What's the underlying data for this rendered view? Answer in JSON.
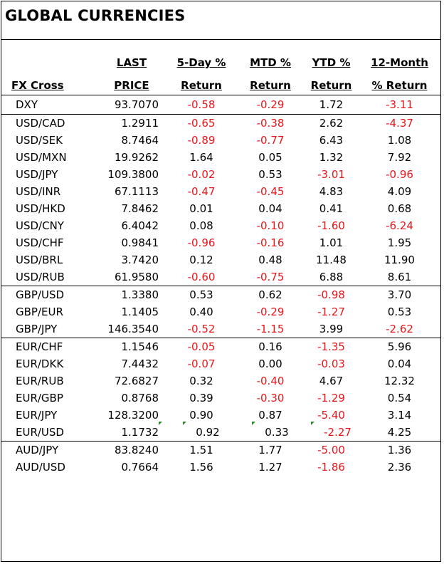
{
  "title": "GLOBAL CURRENCIES",
  "headers": {
    "fx_cross": "FX Cross",
    "last_line1": "LAST",
    "last_line2": "PRICE",
    "day5_line1": "5-Day %",
    "day5_line2": "Return",
    "mtd_line1": "MTD %",
    "mtd_line2": "Return",
    "ytd_line1": "YTD %",
    "ytd_line2": "Return",
    "m12_line1": "12-Month",
    "m12_line2": "% Return"
  },
  "colors": {
    "negative": "#e8151b",
    "positive": "#000000",
    "note_marker": "#2a8a2a"
  },
  "groups": [
    {
      "rows": [
        {
          "pair": "DXY",
          "last": "93.7070",
          "d5": "-0.58",
          "mtd": "-0.29",
          "ytd": "1.72",
          "m12": "-3.11"
        }
      ]
    },
    {
      "rows": [
        {
          "pair": "USD/CAD",
          "last": "1.2911",
          "d5": "-0.65",
          "mtd": "-0.38",
          "ytd": "2.62",
          "m12": "-4.37"
        },
        {
          "pair": "USD/SEK",
          "last": "8.7464",
          "d5": "-0.89",
          "mtd": "-0.77",
          "ytd": "6.43",
          "m12": "1.08"
        },
        {
          "pair": "USD/MXN",
          "last": "19.9262",
          "d5": "1.64",
          "mtd": "0.05",
          "ytd": "1.32",
          "m12": "7.92"
        },
        {
          "pair": "USD/JPY",
          "last": "109.3800",
          "d5": "-0.02",
          "mtd": "0.53",
          "ytd": "-3.01",
          "m12": "-0.96"
        },
        {
          "pair": "USD/INR",
          "last": "67.1113",
          "d5": "-0.47",
          "mtd": "-0.45",
          "ytd": "4.83",
          "m12": "4.09"
        },
        {
          "pair": "USD/HKD",
          "last": "7.8462",
          "d5": "0.01",
          "mtd": "0.04",
          "ytd": "0.41",
          "m12": "0.68"
        },
        {
          "pair": "USD/CNY",
          "last": "6.4042",
          "d5": "0.08",
          "mtd": "-0.10",
          "ytd": "-1.60",
          "m12": "-6.24"
        },
        {
          "pair": "USD/CHF",
          "last": "0.9841",
          "d5": "-0.96",
          "mtd": "-0.16",
          "ytd": "1.01",
          "m12": "1.95"
        },
        {
          "pair": "USD/BRL",
          "last": "3.7420",
          "d5": "0.12",
          "mtd": "0.48",
          "ytd": "11.48",
          "m12": "11.90"
        },
        {
          "pair": "USD/RUB",
          "last": "61.9580",
          "d5": "-0.60",
          "mtd": "-0.75",
          "ytd": "6.88",
          "m12": "8.61"
        }
      ]
    },
    {
      "rows": [
        {
          "pair": "GBP/USD",
          "last": "1.3380",
          "d5": "0.53",
          "mtd": "0.62",
          "ytd": "-0.98",
          "m12": "3.70"
        },
        {
          "pair": "GBP/EUR",
          "last": "1.1405",
          "d5": "0.40",
          "mtd": "-0.29",
          "ytd": "-1.27",
          "m12": "0.53"
        },
        {
          "pair": "GBP/JPY",
          "last": "146.3540",
          "d5": "-0.52",
          "mtd": "-1.15",
          "ytd": "3.99",
          "m12": "-2.62"
        }
      ]
    },
    {
      "rows": [
        {
          "pair": "EUR/CHF",
          "last": "1.1546",
          "d5": "-0.05",
          "mtd": "0.16",
          "ytd": "-1.35",
          "m12": "5.96"
        },
        {
          "pair": "EUR/DKK",
          "last": "7.4432",
          "d5": "-0.07",
          "mtd": "0.00",
          "ytd": "-0.03",
          "m12": "0.04"
        },
        {
          "pair": "EUR/RUB",
          "last": "72.6827",
          "d5": "0.32",
          "mtd": "-0.40",
          "ytd": "4.67",
          "m12": "12.32"
        },
        {
          "pair": "EUR/GBP",
          "last": "0.8768",
          "d5": "0.39",
          "mtd": "-0.30",
          "ytd": "-1.29",
          "m12": "0.54"
        },
        {
          "pair": "EUR/JPY",
          "last": "128.3200",
          "d5": "0.90",
          "mtd": "0.87",
          "ytd": "-5.40",
          "m12": "3.14"
        },
        {
          "pair": "EUR/USD",
          "last": "1.1732",
          "d5": "0.92",
          "mtd": "0.33",
          "ytd": "-2.27",
          "m12": "4.25",
          "markers": true
        }
      ]
    },
    {
      "rows": [
        {
          "pair": "AUD/JPY",
          "last": "83.8240",
          "d5": "1.51",
          "mtd": "1.77",
          "ytd": "-5.00",
          "m12": "1.36"
        },
        {
          "pair": "AUD/USD",
          "last": "0.7664",
          "d5": "1.56",
          "mtd": "1.27",
          "ytd": "-1.86",
          "m12": "2.36"
        }
      ]
    }
  ]
}
